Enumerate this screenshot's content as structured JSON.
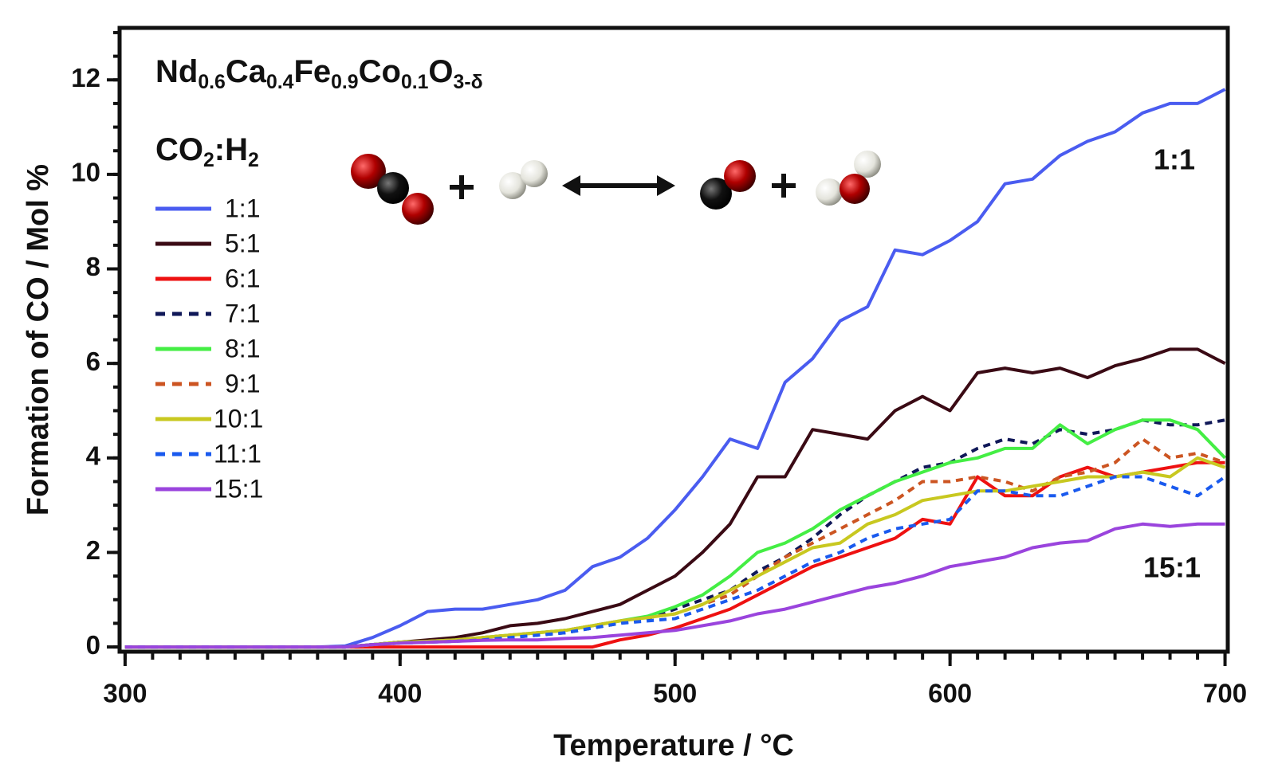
{
  "chart_data": {
    "type": "line",
    "formula": [
      "Nd",
      "0.6",
      "Ca",
      "0.4",
      "Fe",
      "0.9",
      "Co",
      "0.1",
      "O",
      "3-δ"
    ],
    "legend_title": [
      "CO",
      "2",
      ":H",
      "2"
    ],
    "xlabel": "Temperature / °C",
    "ylabel": "Formation of CO / Mol %",
    "annotations": [
      "1:1",
      "15:1"
    ],
    "x": [
      300,
      310,
      320,
      330,
      340,
      350,
      360,
      370,
      380,
      390,
      400,
      410,
      420,
      430,
      440,
      450,
      460,
      470,
      480,
      490,
      500,
      510,
      520,
      530,
      540,
      550,
      560,
      570,
      580,
      590,
      600,
      610,
      620,
      630,
      640,
      650,
      660,
      670,
      680,
      690,
      700
    ],
    "series": [
      {
        "name": "1:1",
        "color": "#4a5cf0",
        "dash": false,
        "values": [
          0,
          0,
          0,
          0,
          0,
          0,
          0,
          0,
          0.02,
          0.2,
          0.45,
          0.75,
          0.8,
          0.8,
          0.9,
          1.0,
          1.2,
          1.7,
          1.9,
          2.3,
          2.9,
          3.6,
          4.4,
          4.2,
          5.6,
          6.1,
          6.9,
          7.2,
          8.4,
          8.3,
          8.6,
          9.0,
          9.8,
          9.9,
          10.4,
          10.7,
          10.9,
          11.3,
          11.5,
          11.5,
          11.8
        ]
      },
      {
        "name": "5:1",
        "color": "#3a0a14",
        "dash": false,
        "values": [
          0,
          0,
          0,
          0,
          0,
          0,
          0,
          0,
          0,
          0.05,
          0.1,
          0.15,
          0.2,
          0.3,
          0.45,
          0.5,
          0.6,
          0.75,
          0.9,
          1.2,
          1.5,
          2.0,
          2.6,
          3.6,
          3.6,
          4.6,
          4.5,
          4.4,
          5.0,
          5.3,
          5.0,
          5.8,
          5.9,
          5.8,
          5.9,
          5.7,
          5.95,
          6.1,
          6.3,
          6.3,
          6.0
        ]
      },
      {
        "name": "6:1",
        "color": "#ee1111",
        "dash": false,
        "values": [
          0,
          0,
          0,
          0,
          0,
          0,
          0,
          0,
          0,
          0,
          0,
          0,
          0,
          0,
          0,
          0,
          0,
          0,
          0.15,
          0.25,
          0.4,
          0.6,
          0.8,
          1.1,
          1.4,
          1.7,
          1.9,
          2.1,
          2.3,
          2.7,
          2.6,
          3.6,
          3.2,
          3.2,
          3.6,
          3.8,
          3.6,
          3.7,
          3.8,
          3.9,
          3.9
        ]
      },
      {
        "name": "7:1",
        "color": "#101858",
        "dash": true,
        "values": [
          0,
          0,
          0,
          0,
          0,
          0,
          0,
          0,
          0,
          0.05,
          0.1,
          0.12,
          0.15,
          0.15,
          0.2,
          0.25,
          0.3,
          0.4,
          0.5,
          0.6,
          0.8,
          1.0,
          1.2,
          1.6,
          1.9,
          2.3,
          2.8,
          3.2,
          3.5,
          3.8,
          3.9,
          4.2,
          4.4,
          4.3,
          4.6,
          4.5,
          4.6,
          4.8,
          4.7,
          4.7,
          4.8
        ]
      },
      {
        "name": "8:1",
        "color": "#44ee44",
        "dash": false,
        "values": [
          0,
          0,
          0,
          0,
          0,
          0,
          0,
          0,
          0,
          0.05,
          0.1,
          0.12,
          0.15,
          0.2,
          0.25,
          0.3,
          0.35,
          0.45,
          0.55,
          0.65,
          0.85,
          1.1,
          1.5,
          2.0,
          2.2,
          2.5,
          2.9,
          3.2,
          3.5,
          3.7,
          3.9,
          4.0,
          4.2,
          4.2,
          4.7,
          4.3,
          4.6,
          4.8,
          4.8,
          4.6,
          4.0
        ]
      },
      {
        "name": "9:1",
        "color": "#cc5522",
        "dash": true,
        "values": [
          0,
          0,
          0,
          0,
          0,
          0,
          0,
          0,
          0,
          0.05,
          0.1,
          0.12,
          0.15,
          0.2,
          0.25,
          0.3,
          0.35,
          0.45,
          0.55,
          0.62,
          0.7,
          0.9,
          1.1,
          1.5,
          1.9,
          2.2,
          2.5,
          2.8,
          3.1,
          3.5,
          3.5,
          3.6,
          3.5,
          3.3,
          3.6,
          3.7,
          3.9,
          4.4,
          4.0,
          4.1,
          3.9
        ]
      },
      {
        "name": "10:1",
        "color": "#c8c820",
        "dash": false,
        "values": [
          0,
          0,
          0,
          0,
          0,
          0,
          0,
          0,
          0,
          0.05,
          0.1,
          0.12,
          0.15,
          0.2,
          0.25,
          0.3,
          0.35,
          0.45,
          0.55,
          0.62,
          0.7,
          0.9,
          1.2,
          1.5,
          1.8,
          2.1,
          2.2,
          2.6,
          2.8,
          3.1,
          3.2,
          3.3,
          3.3,
          3.4,
          3.5,
          3.6,
          3.6,
          3.7,
          3.6,
          4.0,
          3.8
        ]
      },
      {
        "name": "11:1",
        "color": "#1a5aee",
        "dash": true,
        "values": [
          0,
          0,
          0,
          0,
          0,
          0,
          0,
          0,
          0,
          0.05,
          0.08,
          0.1,
          0.12,
          0.15,
          0.2,
          0.25,
          0.3,
          0.4,
          0.5,
          0.55,
          0.6,
          0.8,
          1.0,
          1.2,
          1.5,
          1.8,
          2.0,
          2.3,
          2.5,
          2.6,
          2.7,
          3.3,
          3.3,
          3.2,
          3.2,
          3.4,
          3.6,
          3.6,
          3.4,
          3.2,
          3.6
        ]
      },
      {
        "name": "15:1",
        "color": "#9a44dd",
        "dash": false,
        "values": [
          0,
          0,
          0,
          0,
          0,
          0,
          0,
          0,
          0,
          0.05,
          0.08,
          0.1,
          0.12,
          0.14,
          0.15,
          0.15,
          0.18,
          0.2,
          0.25,
          0.3,
          0.35,
          0.45,
          0.55,
          0.7,
          0.8,
          0.95,
          1.1,
          1.25,
          1.35,
          1.5,
          1.7,
          1.8,
          1.9,
          2.1,
          2.2,
          2.25,
          2.5,
          2.6,
          2.55,
          2.6,
          2.6
        ]
      }
    ],
    "xlim": [
      298,
      701
    ],
    "ylim": [
      -0.1,
      13.1
    ],
    "xticks": [
      300,
      400,
      500,
      600,
      700
    ],
    "yticks": [
      0,
      2,
      4,
      6,
      8,
      10,
      12
    ],
    "x_minor_step": 10,
    "y_minor_step": 0.5,
    "legend": "upper left",
    "grid": false
  }
}
